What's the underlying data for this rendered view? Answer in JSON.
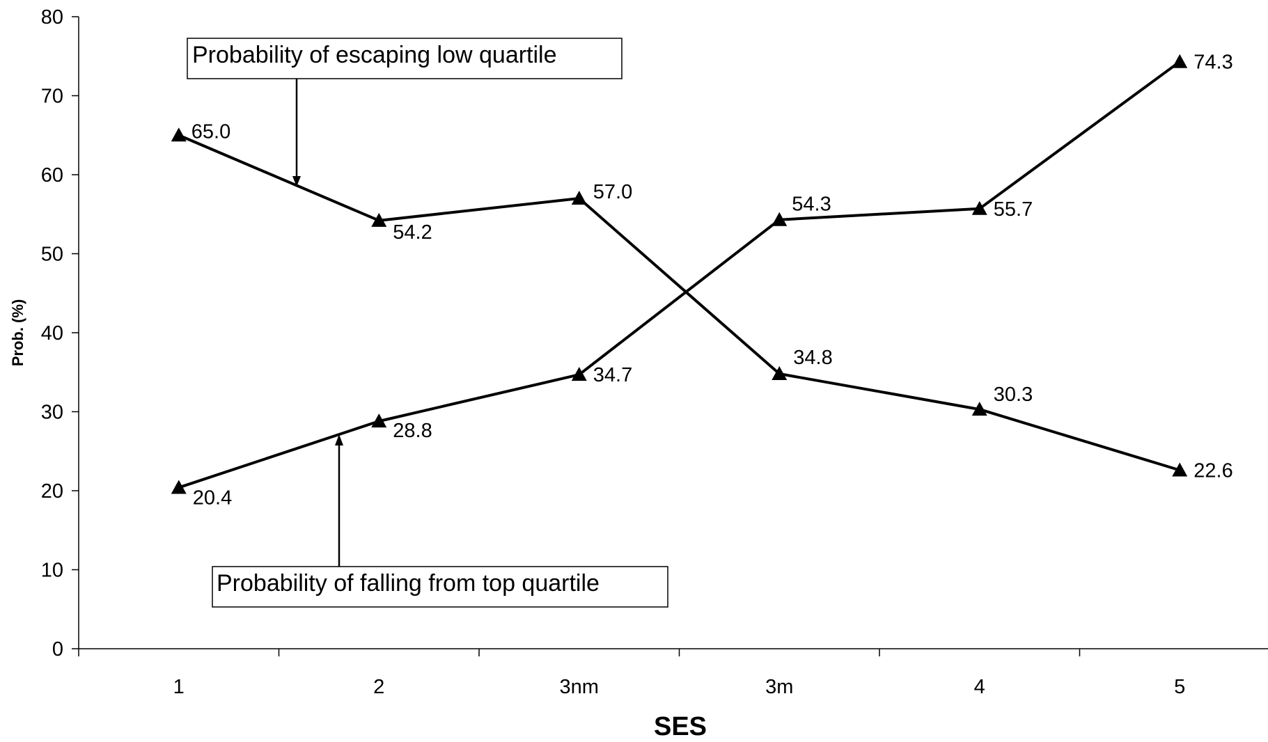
{
  "chart_data": {
    "type": "line",
    "categories": [
      "1",
      "2",
      "3nm",
      "3m",
      "4",
      "5"
    ],
    "series": [
      {
        "values": [
          65.0,
          54.2,
          57.0,
          34.8,
          30.3,
          22.6
        ]
      },
      {
        "values": [
          20.4,
          28.8,
          34.7,
          54.3,
          55.7,
          74.3
        ]
      }
    ],
    "data_labels": [
      [
        "65.0",
        "54.2",
        "57.0",
        "34.8",
        "30.3",
        "22.6"
      ],
      [
        "20.4",
        "28.8",
        "34.7",
        "54.3",
        "55.7",
        "74.3"
      ]
    ],
    "xlabel": "SES",
    "ylabel": "Prob. (%)",
    "ylim": [
      0,
      80
    ],
    "yticks": [
      "0",
      "10",
      "20",
      "30",
      "40",
      "50",
      "60",
      "70",
      "80"
    ],
    "marker": "triangle",
    "line_color": "#000000",
    "grid": false,
    "legend": "none",
    "annotations": [
      {
        "text": "Probability of escaping low quartile"
      },
      {
        "text": "Probability of falling from top quartile"
      }
    ]
  }
}
